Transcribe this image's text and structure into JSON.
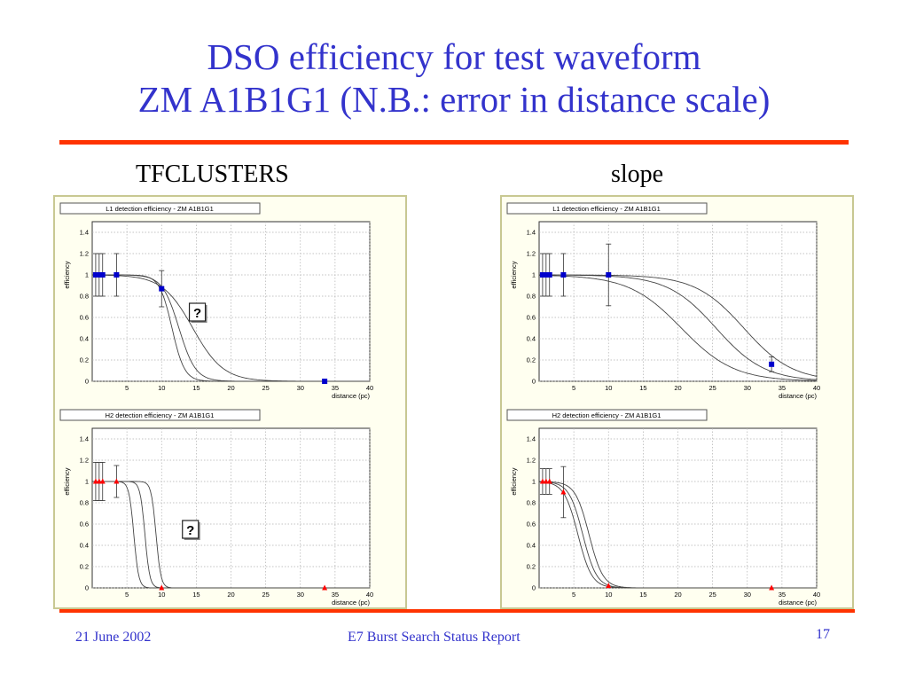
{
  "slide": {
    "title_line1": "DSO efficiency for test waveform",
    "title_line2": "ZM A1B1G1 (N.B.: error in distance scale)",
    "footer_date": "21 June 2002",
    "footer_center": "E7 Burst Search Status Report",
    "page_number": "17",
    "accent_color": "#ff3300",
    "title_color": "#3333cc"
  },
  "columns": [
    {
      "label": "TFCLUSTERS"
    },
    {
      "label": "slope"
    }
  ],
  "chart_data": [
    {
      "type": "scatter",
      "title": "L1 detection efficiency - ZM A1B1G1",
      "xlabel": "distance (pc)",
      "ylabel": "efficiency",
      "xlim": [
        0,
        40
      ],
      "ylim": [
        0,
        1.5
      ],
      "xticks": [
        5,
        10,
        15,
        20,
        25,
        30,
        35,
        40
      ],
      "yticks": [
        0,
        0.2,
        0.4,
        0.6,
        0.8,
        1,
        1.2,
        1.4
      ],
      "marker": "square",
      "marker_color": "#0000cc",
      "points": [
        {
          "x": 0.5,
          "y": 1.0,
          "err": 0.2
        },
        {
          "x": 1.0,
          "y": 1.0,
          "err": 0.2
        },
        {
          "x": 1.5,
          "y": 1.0,
          "err": 0.2
        },
        {
          "x": 3.5,
          "y": 1.0,
          "err": 0.2
        },
        {
          "x": 10.0,
          "y": 0.87,
          "err": 0.17
        },
        {
          "x": 33.5,
          "y": 0.0,
          "err": 0
        }
      ],
      "curves": [
        {
          "mid": 11.5,
          "width": 0.9
        },
        {
          "mid": 12.5,
          "width": 1.2
        },
        {
          "mid": 14.5,
          "width": 2.2
        }
      ],
      "annotation": "?",
      "annotation_pos": [
        14,
        0.6
      ]
    },
    {
      "type": "scatter",
      "title": "H2 detection efficiency - ZM A1B1G1",
      "xlabel": "distance (pc)",
      "ylabel": "efficiency",
      "xlim": [
        0,
        40
      ],
      "ylim": [
        0,
        1.5
      ],
      "xticks": [
        5,
        10,
        15,
        20,
        25,
        30,
        35,
        40
      ],
      "yticks": [
        0,
        0.2,
        0.4,
        0.6,
        0.8,
        1,
        1.2,
        1.4
      ],
      "marker": "triangle",
      "marker_color": "#ff0000",
      "points": [
        {
          "x": 0.5,
          "y": 1.0,
          "err": 0.18
        },
        {
          "x": 1.0,
          "y": 1.0,
          "err": 0.18
        },
        {
          "x": 1.5,
          "y": 1.0,
          "err": 0.18
        },
        {
          "x": 3.5,
          "y": 1.0,
          "err": 0.15
        },
        {
          "x": 10.0,
          "y": 0.0,
          "err": 0
        },
        {
          "x": 33.5,
          "y": 0.0,
          "err": 0
        }
      ],
      "curves": [
        {
          "mid": 6.0,
          "width": 0.35
        },
        {
          "mid": 7.6,
          "width": 0.35
        },
        {
          "mid": 9.2,
          "width": 0.35
        }
      ],
      "annotation": "?",
      "annotation_pos": [
        13,
        0.5
      ]
    },
    {
      "type": "scatter",
      "title": "L1 detection efficiency - ZM A1B1G1",
      "xlabel": "distance (pc)",
      "ylabel": "efficiency",
      "xlim": [
        0,
        40
      ],
      "ylim": [
        0,
        1.5
      ],
      "xticks": [
        5,
        10,
        15,
        20,
        25,
        30,
        35,
        40
      ],
      "yticks": [
        0,
        0.2,
        0.4,
        0.6,
        0.8,
        1,
        1.2,
        1.4
      ],
      "marker": "square",
      "marker_color": "#0000cc",
      "points": [
        {
          "x": 0.5,
          "y": 1.0,
          "err": 0.2
        },
        {
          "x": 1.0,
          "y": 1.0,
          "err": 0.2
        },
        {
          "x": 1.5,
          "y": 1.0,
          "err": 0.2
        },
        {
          "x": 3.5,
          "y": 1.0,
          "err": 0.2
        },
        {
          "x": 10.0,
          "y": 1.0,
          "err": 0.29
        },
        {
          "x": 33.5,
          "y": 0.16,
          "err": 0.07
        }
      ],
      "curves": [
        {
          "mid": 20.5,
          "width": 3.8
        },
        {
          "mid": 25.5,
          "width": 3.5
        },
        {
          "mid": 29.5,
          "width": 3.5
        }
      ]
    },
    {
      "type": "scatter",
      "title": "H2 detection efficiency - ZM A1B1G1",
      "xlabel": "distance (pc)",
      "ylabel": "efficiency",
      "xlim": [
        0,
        40
      ],
      "ylim": [
        0,
        1.5
      ],
      "xticks": [
        5,
        10,
        15,
        20,
        25,
        30,
        35,
        40
      ],
      "yticks": [
        0,
        0.2,
        0.4,
        0.6,
        0.8,
        1,
        1.2,
        1.4
      ],
      "marker": "triangle",
      "marker_color": "#ff0000",
      "points": [
        {
          "x": 0.5,
          "y": 1.0,
          "err": 0.12
        },
        {
          "x": 1.0,
          "y": 1.0,
          "err": 0.12
        },
        {
          "x": 1.5,
          "y": 1.0,
          "err": 0.12
        },
        {
          "x": 3.5,
          "y": 0.9,
          "err": 0.24
        },
        {
          "x": 10.0,
          "y": 0.02,
          "err": 0
        },
        {
          "x": 33.5,
          "y": 0.0,
          "err": 0
        }
      ],
      "curves": [
        {
          "mid": 5.6,
          "width": 1.0
        },
        {
          "mid": 6.3,
          "width": 1.0
        },
        {
          "mid": 7.2,
          "width": 1.0
        }
      ]
    }
  ]
}
